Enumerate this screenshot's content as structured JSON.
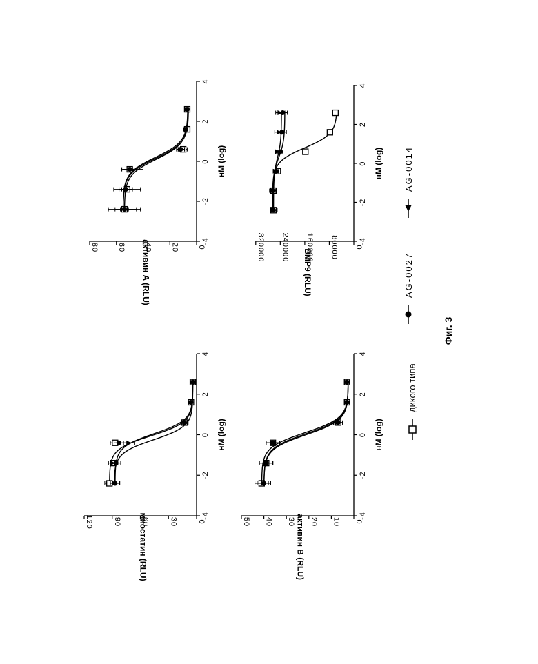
{
  "figure": {
    "caption": "Фиг. 3"
  },
  "legend": [
    {
      "label": "дикого типа",
      "marker": "open-square"
    },
    {
      "label": "AG-0027",
      "marker": "filled-circle"
    },
    {
      "label": "AG-0014",
      "marker": "filled-triangle"
    }
  ],
  "chart_data": [
    {
      "type": "line",
      "title": "",
      "ylabel": "миостатин (RLU)",
      "xlabel": "нМ (log)",
      "xlim": [
        -4,
        4
      ],
      "xticks": [
        -4,
        -2,
        0,
        2,
        4
      ],
      "xtick_labels": [
        "-4",
        "-2",
        "0",
        "2",
        "4"
      ],
      "ylim": [
        0,
        120
      ],
      "yticks": [
        0,
        30,
        60,
        90,
        120
      ],
      "ytick_labels": [
        "0",
        "30",
        "60",
        "90",
        "120"
      ],
      "series": [
        {
          "name": "дикого типа",
          "marker": "open-square",
          "x": [
            -2.4,
            -1.4,
            -0.4,
            0.6,
            1.6,
            2.6
          ],
          "y": [
            93,
            89,
            87,
            13,
            6,
            4
          ],
          "err": [
            5,
            3,
            5,
            3,
            1,
            1
          ],
          "curve": {
            "top": 93,
            "bottom": 4,
            "ec50": -0.05,
            "hill": 1.3
          }
        },
        {
          "name": "AG-0027",
          "marker": "filled-circle",
          "x": [
            -2.4,
            -1.4,
            -0.4,
            0.6,
            1.6,
            2.6
          ],
          "y": [
            87,
            86,
            83,
            13,
            6,
            4
          ],
          "err": [
            5,
            5,
            5,
            3,
            1,
            1
          ],
          "curve": {
            "top": 87,
            "bottom": 4,
            "ec50": 0.05,
            "hill": 1.3
          }
        },
        {
          "name": "AG-0014",
          "marker": "filled-triangle",
          "x": [
            -2.4,
            -1.4,
            -0.4,
            0.6,
            1.6,
            2.6
          ],
          "y": [
            87,
            89,
            72,
            12,
            6,
            4
          ],
          "err": [
            5,
            5,
            6,
            3,
            1,
            1
          ],
          "curve": {
            "top": 88,
            "bottom": 4,
            "ec50": -0.25,
            "hill": 1.3
          }
        }
      ]
    },
    {
      "type": "line",
      "title": "",
      "ylabel": "активин B (RLU)",
      "xlabel": "нМ (log)",
      "xlim": [
        -4,
        4
      ],
      "xticks": [
        -4,
        -2,
        0,
        2,
        4
      ],
      "xtick_labels": [
        "-4",
        "-2",
        "0",
        "2",
        "4"
      ],
      "ylim": [
        0,
        50
      ],
      "yticks": [
        0,
        10,
        20,
        30,
        40,
        50
      ],
      "ytick_labels": [
        "0",
        "10",
        "20",
        "30",
        "40",
        "50"
      ],
      "series": [
        {
          "name": "дикого типа",
          "marker": "open-square",
          "x": [
            -2.4,
            -1.4,
            -0.4,
            0.6,
            1.6,
            2.6
          ],
          "y": [
            41,
            39,
            36,
            7,
            3,
            3
          ],
          "err": [
            3,
            3,
            3,
            2,
            1,
            1
          ],
          "curve": {
            "top": 41,
            "bottom": 2.5,
            "ec50": 0.1,
            "hill": 1.2
          }
        },
        {
          "name": "AG-0027",
          "marker": "filled-circle",
          "x": [
            -2.4,
            -1.4,
            -0.4,
            0.6,
            1.6,
            2.6
          ],
          "y": [
            40,
            39,
            36,
            7,
            3,
            3
          ],
          "err": [
            3,
            3,
            3,
            2,
            1,
            1
          ],
          "curve": {
            "top": 40,
            "bottom": 2.5,
            "ec50": 0.05,
            "hill": 1.2
          }
        },
        {
          "name": "AG-0014",
          "marker": "filled-triangle",
          "x": [
            -2.4,
            -1.4,
            -0.4,
            0.6,
            1.6,
            2.6
          ],
          "y": [
            40,
            39,
            36,
            7,
            3,
            3
          ],
          "err": [
            3,
            3,
            3,
            2,
            1,
            1
          ],
          "curve": {
            "top": 40,
            "bottom": 2.5,
            "ec50": 0.0,
            "hill": 1.2
          }
        }
      ]
    },
    {
      "type": "line",
      "title": "",
      "ylabel": "активин A (RLU)",
      "xlabel": "нМ (log)",
      "xlim": [
        -4,
        4
      ],
      "xticks": [
        -4,
        -2,
        0,
        2,
        4
      ],
      "xtick_labels": [
        "-4",
        "-2",
        "0",
        "2",
        "4"
      ],
      "ylim": [
        0,
        80
      ],
      "yticks": [
        0,
        20,
        40,
        60,
        80
      ],
      "ytick_labels": [
        "0",
        "20",
        "40",
        "60",
        "80"
      ],
      "series": [
        {
          "name": "дикого типа",
          "marker": "open-square",
          "x": [
            -2.4,
            -1.4,
            -0.4,
            0.6,
            1.6,
            2.6
          ],
          "y": [
            54,
            52,
            50,
            10,
            7,
            7
          ],
          "err": [
            3,
            4,
            5,
            3,
            1,
            1
          ],
          "curve": {
            "top": 55,
            "bottom": 6,
            "ec50": 0.15,
            "hill": 1.1
          }
        },
        {
          "name": "AG-0027",
          "marker": "filled-circle",
          "x": [
            -2.4,
            -1.4,
            -0.4,
            0.6,
            1.6,
            2.6
          ],
          "y": [
            54,
            53,
            50,
            12,
            8,
            7
          ],
          "err": [
            12,
            5,
            5,
            3,
            1,
            1
          ],
          "curve": {
            "top": 55,
            "bottom": 6.5,
            "ec50": 0.2,
            "hill": 1.1
          }
        },
        {
          "name": "AG-0014",
          "marker": "filled-triangle",
          "x": [
            -2.4,
            -1.4,
            -0.4,
            0.6,
            1.6,
            2.6
          ],
          "y": [
            53,
            52,
            48,
            12,
            8,
            7
          ],
          "err": [
            8,
            10,
            8,
            3,
            1,
            1
          ],
          "curve": {
            "top": 54,
            "bottom": 6.5,
            "ec50": 0.1,
            "hill": 1.1
          }
        }
      ]
    },
    {
      "type": "line",
      "title": "",
      "ylabel": "BMP9 (RLU)",
      "xlabel": "нМ (log)",
      "xlim": [
        -4,
        4
      ],
      "xticks": [
        -4,
        -2,
        0,
        2,
        4
      ],
      "xtick_labels": [
        "-4",
        "-2",
        "0",
        "2",
        "4"
      ],
      "ylim": [
        0,
        360000
      ],
      "yticks": [
        0,
        80000,
        160000,
        240000,
        320000
      ],
      "ytick_labels": [
        "0",
        "80000",
        "160000",
        "240000",
        "320000"
      ],
      "series": [
        {
          "name": "дикого типа",
          "marker": "open-square",
          "x": [
            -2.4,
            -1.4,
            -0.4,
            0.6,
            1.6,
            2.6
          ],
          "y": [
            262000,
            262000,
            248000,
            158000,
            78000,
            60000
          ],
          "err": [
            10000,
            8000,
            8000,
            6000,
            4000,
            4000
          ],
          "curve": {
            "top": 265000,
            "bottom": 55000,
            "ec50": 0.8,
            "hill": 1.2
          }
        },
        {
          "name": "AG-0027",
          "marker": "filled-circle",
          "x": [
            -2.4,
            -1.4,
            -0.4,
            0.6,
            1.6,
            2.6
          ],
          "y": [
            262000,
            265000,
            253000,
            240000,
            235000,
            232000
          ],
          "err": [
            10000,
            10000,
            8000,
            8000,
            15000,
            15000
          ],
          "curve": {
            "top": 265000,
            "bottom": 225000,
            "ec50": 0.3,
            "hill": 1.0
          }
        },
        {
          "name": "AG-0014",
          "marker": "filled-triangle",
          "x": [
            -2.4,
            -1.4,
            -0.4,
            0.6,
            1.6,
            2.6
          ],
          "y": [
            260000,
            263000,
            255000,
            248000,
            243000,
            240000
          ],
          "err": [
            10000,
            10000,
            8000,
            8000,
            15000,
            15000
          ],
          "curve": {
            "top": 262000,
            "bottom": 236000,
            "ec50": 0.3,
            "hill": 1.0
          }
        }
      ]
    }
  ]
}
